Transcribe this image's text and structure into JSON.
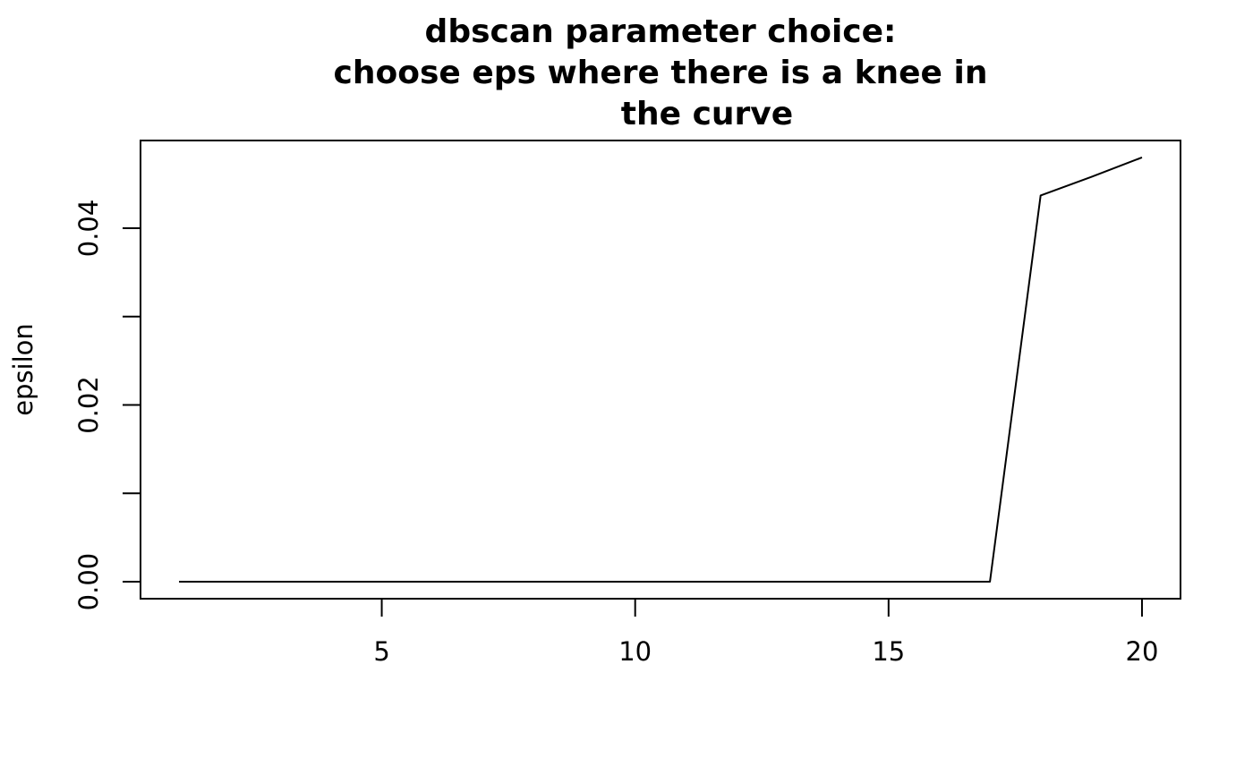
{
  "chart_data": {
    "type": "line",
    "title_lines": [
      "dbscan parameter choice:",
      "choose eps where there is a knee in",
      "the curve"
    ],
    "xlabel": "",
    "ylabel": "epsilon",
    "x": [
      1,
      2,
      3,
      4,
      5,
      6,
      7,
      8,
      9,
      10,
      11,
      12,
      13,
      14,
      15,
      16,
      17,
      18,
      19,
      20
    ],
    "y": [
      0,
      0,
      0,
      0,
      0,
      0,
      0,
      0,
      0,
      0,
      0,
      0,
      0,
      0,
      0,
      0,
      0,
      0.0437,
      0.0458,
      0.048
    ],
    "xlim": [
      0.24,
      20.76
    ],
    "ylim": [
      -0.00192,
      0.04992
    ],
    "x_ticks": [
      5,
      10,
      15,
      20
    ],
    "y_ticks": [
      0.0,
      0.01,
      0.02,
      0.03,
      0.04
    ],
    "y_tick_labels": [
      "0.00",
      "",
      "0.02",
      "",
      "0.04"
    ],
    "x_tick_labels": [
      "5",
      "10",
      "15",
      "20"
    ],
    "grid": false,
    "line_color": "#000000"
  }
}
